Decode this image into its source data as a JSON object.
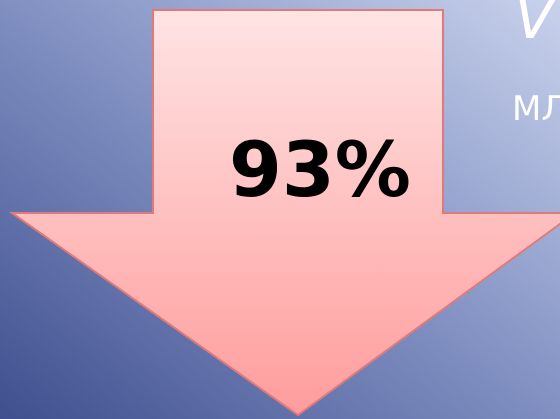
{
  "arrow_label": "93%",
  "heading_fragment": "V",
  "subheading_fragment": "МЛ"
}
